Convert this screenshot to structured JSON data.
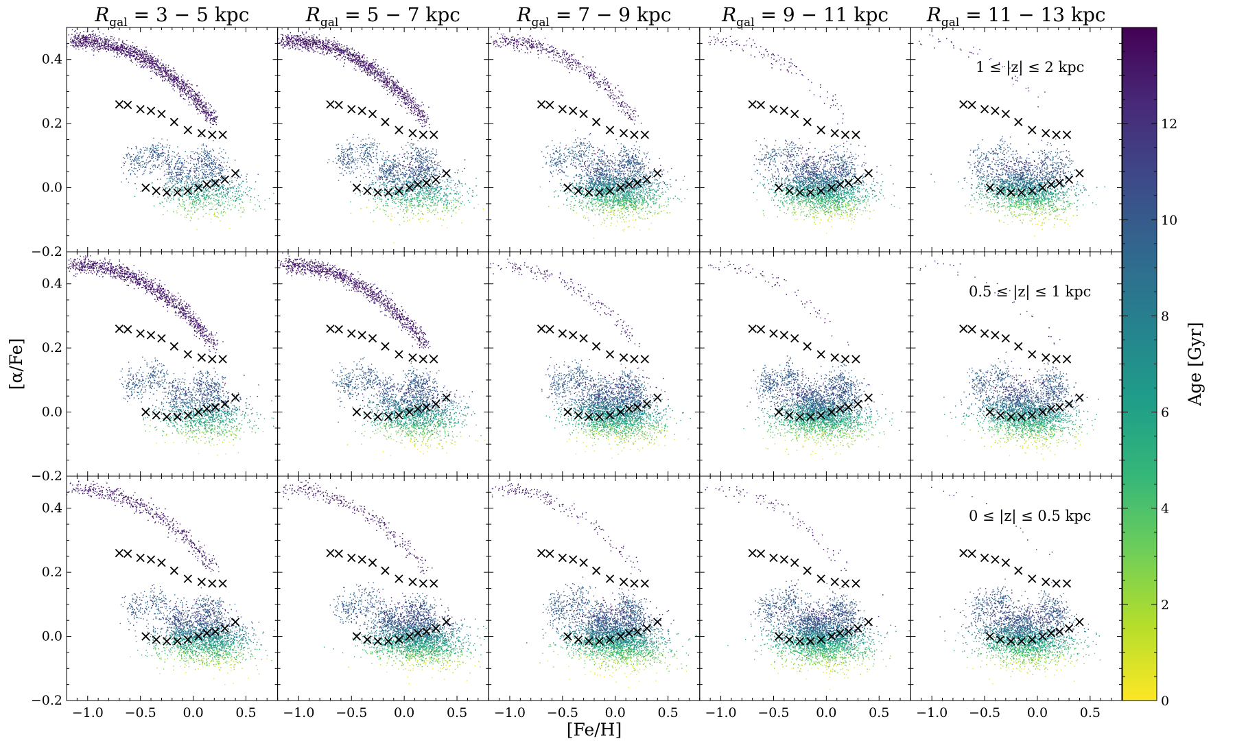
{
  "chart_data": {
    "type": "scatter",
    "xlabel": "[Fe/H]",
    "ylabel": "[α/Fe]",
    "xlim": [
      -1.2,
      0.8
    ],
    "ylim": [
      -0.2,
      0.5
    ],
    "x_ticks": [
      "−1.0",
      "−0.5",
      "0.0",
      "0.5"
    ],
    "y_ticks": [
      "−0.2",
      "0.0",
      "0.2",
      "0.4"
    ],
    "x_tick_values": [
      -1.0,
      -0.5,
      0.0,
      0.5
    ],
    "y_tick_values": [
      -0.2,
      0.0,
      0.2,
      0.4
    ],
    "columns": [
      {
        "prefix": "R",
        "sub": "gal",
        "range": " = 3 − 5 kpc"
      },
      {
        "prefix": "R",
        "sub": "gal",
        "range": " = 5 − 7 kpc"
      },
      {
        "prefix": "R",
        "sub": "gal",
        "range": " = 7 − 9 kpc"
      },
      {
        "prefix": "R",
        "sub": "gal",
        "range": " = 9 − 11 kpc"
      },
      {
        "prefix": "R",
        "sub": "gal",
        "range": " = 11 − 13 kpc"
      }
    ],
    "rows": [
      {
        "label": "1 ≤ |z| ≤ 2 kpc"
      },
      {
        "label": "0.5 ≤ |z| ≤ 1 kpc"
      },
      {
        "label": "0 ≤ |z| ≤ 0.5 kpc"
      }
    ],
    "marker_series": {
      "high_alpha": {
        "x": [
          -0.7,
          -0.62,
          -0.5,
          -0.4,
          -0.3,
          -0.18,
          -0.05,
          0.08,
          0.18,
          0.28
        ],
        "y": [
          0.26,
          0.258,
          0.245,
          0.24,
          0.23,
          0.205,
          0.18,
          0.17,
          0.165,
          0.165
        ]
      },
      "low_alpha": {
        "x": [
          -0.45,
          -0.35,
          -0.25,
          -0.15,
          -0.05,
          0.05,
          0.13,
          0.21,
          0.3,
          0.4
        ],
        "y": [
          0.0,
          -0.01,
          -0.015,
          -0.015,
          -0.01,
          0.0,
          0.01,
          0.015,
          0.025,
          0.045
        ]
      }
    },
    "colorbar": {
      "label": "Age [Gyr]",
      "ticks": [
        "0",
        "2",
        "4",
        "6",
        "8",
        "10",
        "12"
      ],
      "tick_values": [
        0,
        2,
        4,
        6,
        8,
        10,
        12
      ],
      "range": [
        0,
        14
      ],
      "colormap": "viridis_r",
      "stops": [
        "#fde725",
        "#b5de2b",
        "#6ece58",
        "#35b779",
        "#1f9e89",
        "#26828e",
        "#31688e",
        "#3e4989",
        "#482878",
        "#440154"
      ]
    }
  }
}
